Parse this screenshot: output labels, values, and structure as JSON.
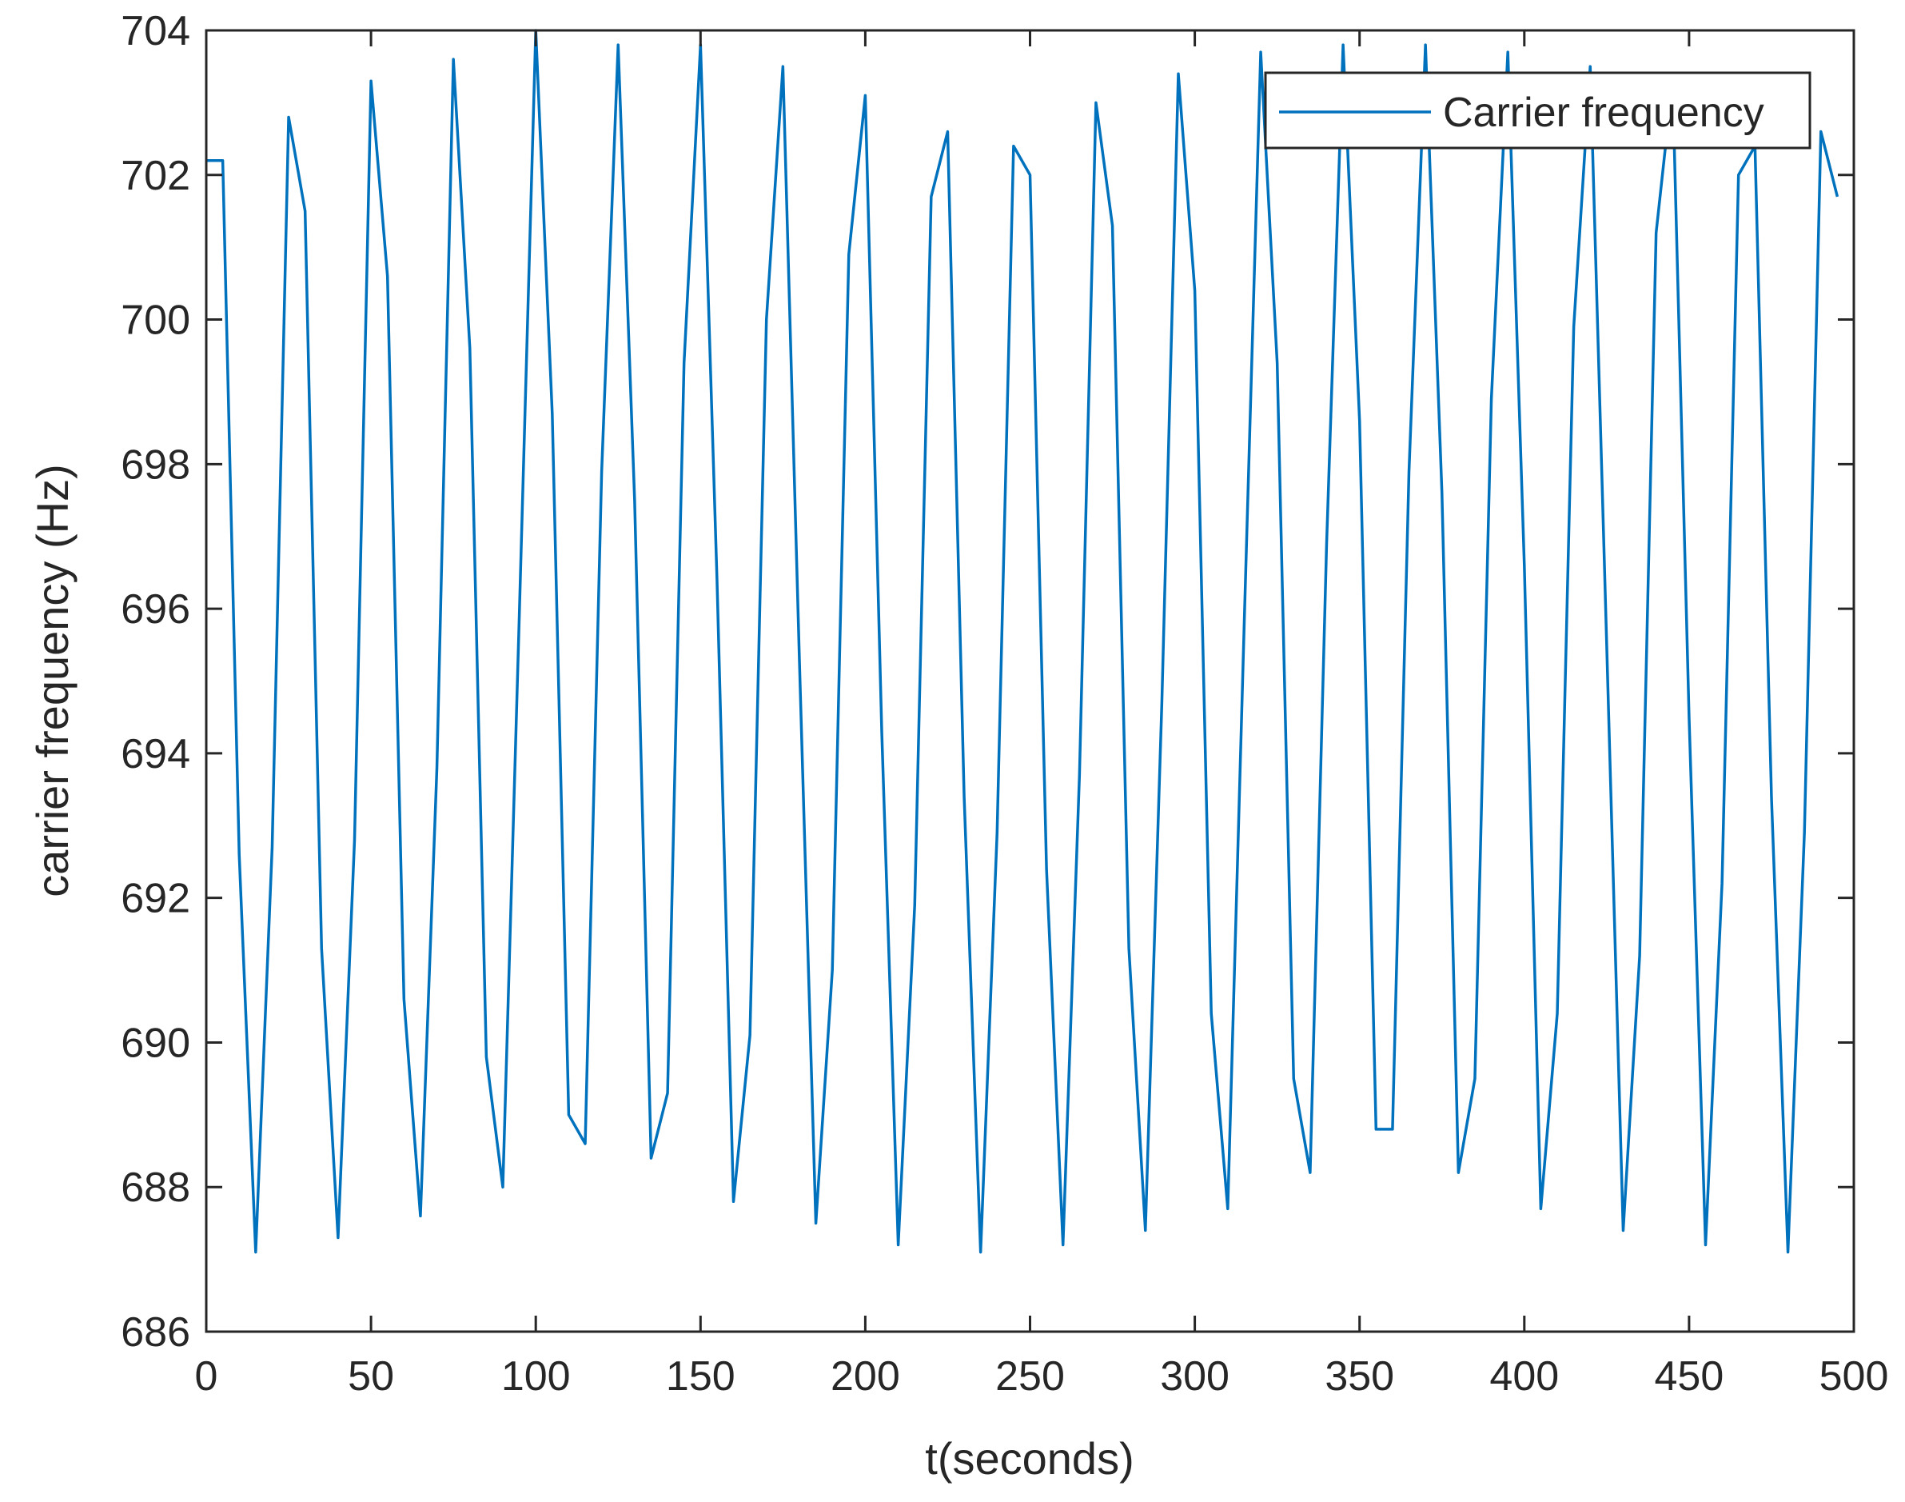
{
  "chart_data": {
    "type": "line",
    "xlabel": "t(seconds)",
    "ylabel": "carrier frequency (Hz)",
    "xlim": [
      0,
      500
    ],
    "ylim": [
      686,
      704
    ],
    "xticks": [
      0,
      50,
      100,
      150,
      200,
      250,
      300,
      350,
      400,
      450,
      500
    ],
    "yticks": [
      686,
      688,
      690,
      692,
      694,
      696,
      698,
      700,
      702,
      704
    ],
    "grid": false,
    "legend": {
      "position": "top-right",
      "entries": [
        "Carrier frequency"
      ]
    },
    "series": [
      {
        "name": "Carrier frequency",
        "color": "#0072BD",
        "x": [
          0,
          5,
          10,
          15,
          20,
          25,
          30,
          35,
          40,
          45,
          50,
          55,
          60,
          65,
          70,
          75,
          80,
          85,
          90,
          95,
          100,
          105,
          110,
          115,
          120,
          125,
          130,
          135,
          140,
          145,
          150,
          155,
          160,
          165,
          170,
          175,
          180,
          185,
          190,
          195,
          200,
          205,
          210,
          215,
          220,
          225,
          230,
          235,
          240,
          245,
          250,
          255,
          260,
          265,
          270,
          275,
          280,
          285,
          290,
          295,
          300,
          305,
          310,
          315,
          320,
          325,
          330,
          335,
          340,
          345,
          350,
          355,
          360,
          365,
          370,
          375,
          380,
          385,
          390,
          395,
          400,
          405,
          410,
          415,
          420,
          425,
          430,
          435,
          440,
          445,
          450,
          455,
          460,
          465,
          470,
          475,
          480,
          485,
          490,
          495
        ],
        "y": [
          702.2,
          702.2,
          692.6,
          687.1,
          692.7,
          702.8,
          701.5,
          691.3,
          687.3,
          692.8,
          703.3,
          700.6,
          690.6,
          687.6,
          693.8,
          703.6,
          699.6,
          689.8,
          688.0,
          695.9,
          704.0,
          698.7,
          689.0,
          688.6,
          697.9,
          703.8,
          697.5,
          688.4,
          689.3,
          699.4,
          703.8,
          696.4,
          687.8,
          690.1,
          700.0,
          703.5,
          695.3,
          687.5,
          691.0,
          700.9,
          703.1,
          694.3,
          687.2,
          691.9,
          701.7,
          702.6,
          693.4,
          687.1,
          692.9,
          702.4,
          702.0,
          692.4,
          687.2,
          693.7,
          703.0,
          701.3,
          691.3,
          687.4,
          694.7,
          703.4,
          700.4,
          690.4,
          687.7,
          695.8,
          703.7,
          699.4,
          689.5,
          688.2,
          696.9,
          703.8,
          698.6,
          688.8,
          688.8,
          697.9,
          703.8,
          697.6,
          688.2,
          689.5,
          698.9,
          703.7,
          696.6,
          687.7,
          690.4,
          699.9,
          703.5,
          695.5,
          687.4,
          691.2,
          701.2,
          703.3,
          694.5,
          687.2,
          692.2,
          702.0,
          702.4,
          693.4,
          687.1,
          692.9,
          702.6,
          701.7
        ]
      }
    ]
  }
}
